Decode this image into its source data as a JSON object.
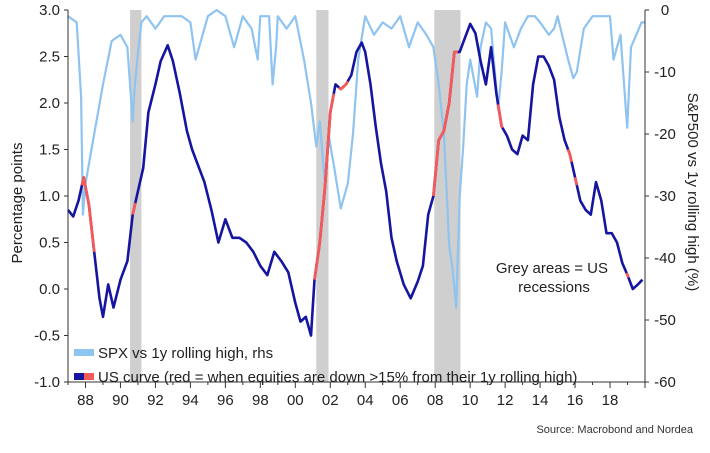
{
  "chart_data": {
    "type": "line",
    "title": "",
    "ylabel_left": "Percentage points",
    "ylabel_right": "S&P500 vs 1y rolling high (%)",
    "ylim_left": [
      -1.0,
      3.0
    ],
    "ylim_right": [
      -60,
      0
    ],
    "yticks_left": [
      "3.0",
      "2.5",
      "2.0",
      "1.5",
      "1.0",
      "0.5",
      "0.0",
      "-0.5",
      "-1.0"
    ],
    "yticks_left_values": [
      3.0,
      2.5,
      2.0,
      1.5,
      1.0,
      0.5,
      0.0,
      -0.5,
      -1.0
    ],
    "yticks_right": [
      "0",
      "-10",
      "-20",
      "-30",
      "-40",
      "-50",
      "-60"
    ],
    "yticks_right_values": [
      0,
      -10,
      -20,
      -30,
      -40,
      -50,
      -60
    ],
    "xlim": [
      1987.0,
      2020.0
    ],
    "xticks": [
      "88",
      "90",
      "92",
      "94",
      "96",
      "98",
      "00",
      "02",
      "04",
      "06",
      "08",
      "10",
      "12",
      "14",
      "16",
      "18"
    ],
    "xticks_values": [
      1988,
      1990,
      1992,
      1994,
      1996,
      1998,
      2000,
      2002,
      2004,
      2006,
      2008,
      2010,
      2012,
      2014,
      2016,
      2018
    ],
    "grid": false,
    "legend_position": "bottom-left",
    "annotation": "Grey areas = US\nrecessions",
    "source": "Source: Macrobond and Nordea",
    "recessions": [
      [
        1990.55,
        1991.2
      ],
      [
        2001.2,
        2001.9
      ],
      [
        2007.95,
        2009.45
      ]
    ],
    "series": [
      {
        "name": "SPX vs 1y rolling high, rhs",
        "axis": "right",
        "color": "#8fc3f0",
        "x": [
          1987.0,
          1987.5,
          1987.75,
          1987.85,
          1988.0,
          1988.5,
          1989.0,
          1989.5,
          1990.0,
          1990.4,
          1990.7,
          1990.8,
          1991.0,
          1991.2,
          1991.5,
          1992.0,
          1992.5,
          1993.0,
          1993.5,
          1994.0,
          1994.3,
          1994.7,
          1995.0,
          1995.5,
          1996.0,
          1996.5,
          1997.0,
          1997.5,
          1997.85,
          1998.0,
          1998.5,
          1998.7,
          1998.9,
          1999.0,
          1999.5,
          2000.0,
          2000.5,
          2000.9,
          2001.2,
          2001.4,
          2001.7,
          2001.9,
          2002.2,
          2002.6,
          2002.8,
          2003.0,
          2003.3,
          2003.6,
          2004.0,
          2004.5,
          2005.0,
          2005.5,
          2006.0,
          2006.5,
          2007.0,
          2007.5,
          2007.9,
          2008.2,
          2008.5,
          2008.8,
          2009.0,
          2009.2,
          2009.4,
          2009.6,
          2009.8,
          2010.0,
          2010.4,
          2010.6,
          2010.9,
          2011.2,
          2011.6,
          2011.8,
          2012.0,
          2012.5,
          2012.9,
          2013.3,
          2013.7,
          2014.0,
          2014.5,
          2014.8,
          2015.0,
          2015.6,
          2015.9,
          2016.1,
          2016.5,
          2017.0,
          2017.5,
          2018.0,
          2018.2,
          2018.6,
          2018.98,
          2019.2,
          2019.5,
          2019.8,
          2020.0
        ],
        "y": [
          -1,
          -2,
          -14,
          -33,
          -28,
          -20,
          -12,
          -5,
          -4,
          -6,
          -18,
          -13,
          -7,
          -2,
          -1,
          -3,
          -1,
          -1,
          -1,
          -2,
          -8,
          -4,
          -1,
          0,
          -1,
          -6,
          -1,
          -3,
          -8,
          -1,
          -1,
          -12,
          -6,
          -1,
          -3,
          -1,
          -8,
          -15,
          -22,
          -18,
          -28,
          -20,
          -25,
          -32,
          -30,
          -28,
          -20,
          -8,
          -1,
          -4,
          -2,
          -3,
          -1,
          -6,
          -2,
          -4,
          -6,
          -12,
          -20,
          -38,
          -42,
          -48,
          -30,
          -22,
          -12,
          -8,
          -14,
          -6,
          -2,
          -3,
          -16,
          -10,
          -2,
          -6,
          -3,
          -1,
          -1,
          -2,
          -4,
          -3,
          -1,
          -8,
          -11,
          -10,
          -3,
          -1,
          -1,
          -1,
          -8,
          -4,
          -19,
          -6,
          -4,
          -2,
          -2
        ]
      },
      {
        "name": "US curve (red = when equities are down >15% from their 1y rolling high)",
        "axis": "left",
        "color": "#1515a0",
        "highlight_color": "#f45a5a",
        "x": [
          1987.0,
          1987.3,
          1987.6,
          1987.9,
          1988.2,
          1988.5,
          1988.8,
          1989.0,
          1989.3,
          1989.6,
          1990.0,
          1990.4,
          1990.7,
          1991.0,
          1991.3,
          1991.6,
          1992.0,
          1992.3,
          1992.7,
          1993.0,
          1993.4,
          1993.8,
          1994.1,
          1994.5,
          1994.8,
          1995.2,
          1995.6,
          1996.0,
          1996.4,
          1996.8,
          1997.2,
          1997.6,
          1998.0,
          1998.4,
          1998.8,
          1999.2,
          1999.6,
          2000.0,
          2000.3,
          2000.6,
          2000.9,
          2001.1,
          2001.4,
          2001.7,
          2002.0,
          2002.3,
          2002.6,
          2002.9,
          2003.2,
          2003.5,
          2003.8,
          2004.0,
          2004.3,
          2004.6,
          2004.9,
          2005.2,
          2005.5,
          2005.8,
          2006.2,
          2006.6,
          2007.0,
          2007.3,
          2007.6,
          2007.9,
          2008.2,
          2008.5,
          2008.8,
          2009.1,
          2009.4,
          2009.7,
          2010.0,
          2010.3,
          2010.6,
          2010.9,
          2011.2,
          2011.5,
          2011.8,
          2012.1,
          2012.4,
          2012.7,
          2013.0,
          2013.3,
          2013.6,
          2013.9,
          2014.2,
          2014.5,
          2014.8,
          2015.1,
          2015.4,
          2015.7,
          2016.0,
          2016.3,
          2016.6,
          2016.9,
          2017.2,
          2017.5,
          2017.8,
          2018.1,
          2018.4,
          2018.7,
          2019.0,
          2019.3,
          2019.6,
          2019.85
        ],
        "y": [
          0.85,
          0.78,
          0.95,
          1.2,
          0.9,
          0.4,
          -0.1,
          -0.3,
          0.05,
          -0.2,
          0.1,
          0.3,
          0.8,
          1.05,
          1.3,
          1.9,
          2.2,
          2.45,
          2.62,
          2.45,
          2.1,
          1.7,
          1.5,
          1.3,
          1.15,
          0.85,
          0.5,
          0.75,
          0.55,
          0.55,
          0.5,
          0.4,
          0.25,
          0.15,
          0.4,
          0.3,
          0.18,
          -0.15,
          -0.35,
          -0.3,
          -0.5,
          0.1,
          0.5,
          1.1,
          1.9,
          2.2,
          2.15,
          2.2,
          2.3,
          2.55,
          2.65,
          2.55,
          2.2,
          1.75,
          1.35,
          1.05,
          0.55,
          0.3,
          0.05,
          -0.1,
          0.08,
          0.25,
          0.8,
          1.0,
          1.6,
          1.7,
          2.0,
          2.55,
          2.55,
          2.7,
          2.85,
          2.75,
          2.45,
          2.2,
          2.6,
          2.1,
          1.75,
          1.65,
          1.5,
          1.45,
          1.65,
          1.6,
          2.2,
          2.5,
          2.5,
          2.4,
          2.25,
          1.85,
          1.6,
          1.45,
          1.2,
          0.95,
          0.85,
          0.8,
          1.15,
          0.95,
          0.6,
          0.6,
          0.5,
          0.28,
          0.15,
          0.0,
          0.05,
          0.1
        ],
        "highlight_ranges": [
          [
            1987.8,
            1988.5
          ],
          [
            1990.7,
            1990.85
          ],
          [
            2001.1,
            2002.2
          ],
          [
            2002.5,
            2003.0
          ],
          [
            2007.9,
            2009.3
          ],
          [
            2011.6,
            2011.85
          ],
          [
            2015.6,
            2015.8
          ],
          [
            2016.0,
            2016.1
          ],
          [
            2018.95,
            2019.05
          ]
        ]
      }
    ]
  }
}
